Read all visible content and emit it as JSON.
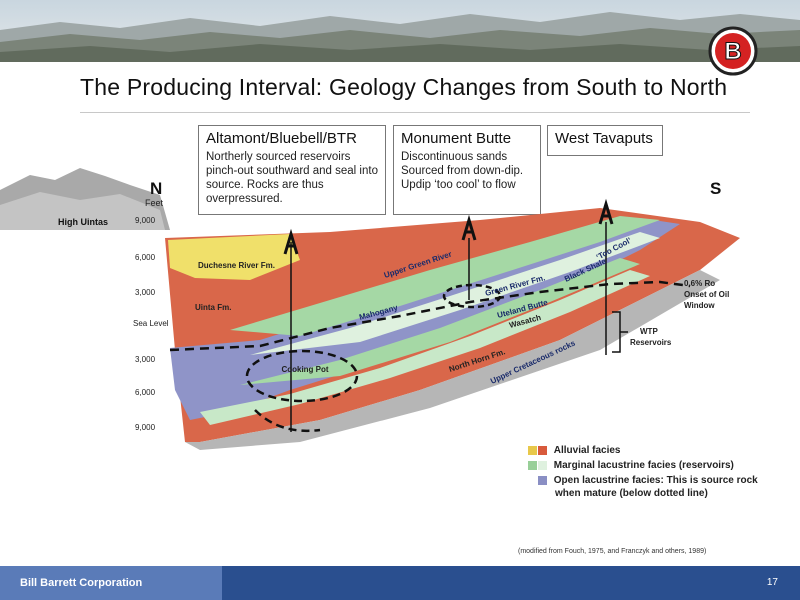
{
  "slide": {
    "title": "The Producing Interval: Geology Changes from South to North",
    "logo_letter": "B"
  },
  "callouts": [
    {
      "title": "Altamont/Bluebell/BTR",
      "body": "Northerly sourced reservoirs pinch-out southward and seal into source. Rocks are thus overpressured."
    },
    {
      "title": "Monument Butte",
      "body": "Discontinuous sands Sourced from down-dip. Updip ‘too cool’ to flow"
    },
    {
      "title": "West Tavaputs",
      "body": ""
    }
  ],
  "diagram": {
    "north_label": "N",
    "south_label": "S",
    "high_uintas": "High Uintas",
    "depth_axis": {
      "unit": "Feet",
      "ticks": [
        "9,000",
        "6,000",
        "3,000",
        "Sea Level",
        "3,000",
        "6,000",
        "9,000"
      ]
    },
    "formations": {
      "duchesne": "Duchesne River Fm.",
      "uinta": "Uinta Fm.",
      "upper_green_river": "Upper Green River",
      "mahogany": "Mahogany",
      "green_river": "Green River Fm.",
      "uteland_butte": "Uteland Butte",
      "wasatch": "Wasatch",
      "too_cool": "‘Too Cool’",
      "black_shale": "Black Shale",
      "north_horn": "North Horn Fm.",
      "upper_cretaceous": "Upper Cretaceous rocks",
      "cooking_pot": "Cooking Pot"
    },
    "annotations": {
      "oil_window_1": "0.6% Ro",
      "oil_window_2": "Onset of Oil",
      "oil_window_3": "Window",
      "wtp_1": "WTP",
      "wtp_2": "Reservoirs"
    }
  },
  "legend": [
    {
      "label": "Alluvial facies",
      "colors": [
        "#e8c84a",
        "#d85a3c"
      ]
    },
    {
      "label": "Marginal lacustrine facies (reservoirs)",
      "colors": [
        "#98cf98",
        "#dff1df"
      ]
    },
    {
      "label": "Open lacustrine facies: This is source rock",
      "label2": "when mature (below dotted line)",
      "colors": [
        "#8a8fc4"
      ]
    }
  ],
  "citation": "(modified from Fouch, 1975, and Franczyk and others, 1989)",
  "footer": {
    "company": "Bill Barrett Corporation",
    "page": "17"
  }
}
